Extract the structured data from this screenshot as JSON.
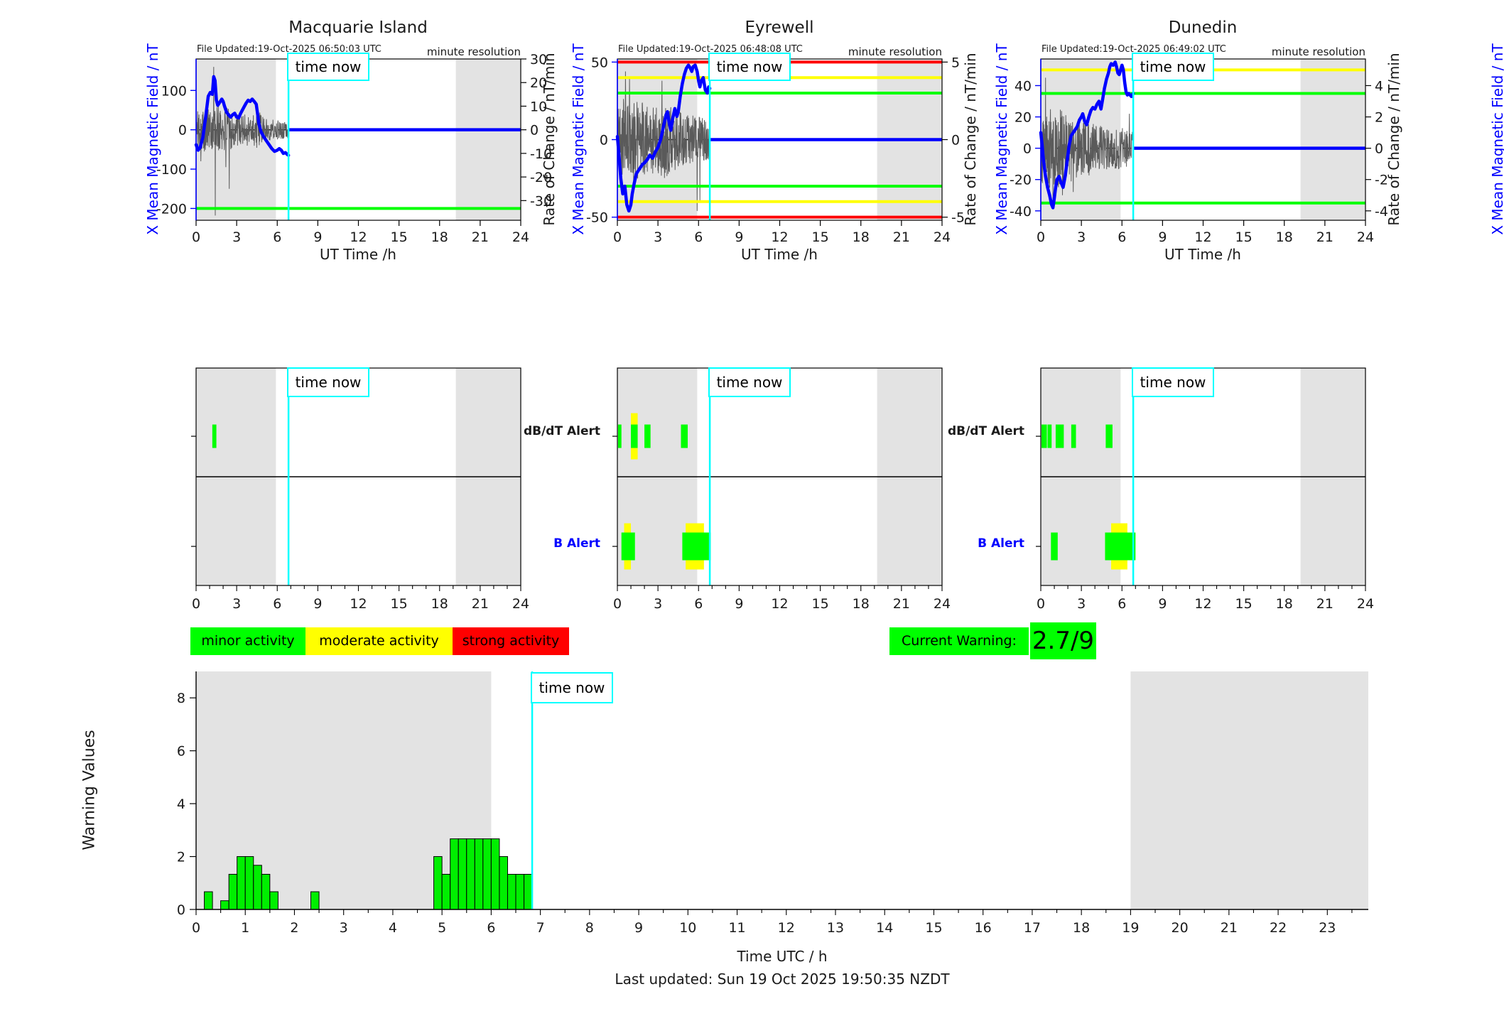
{
  "labels": {
    "time_now": "time now",
    "ut_time": "UT Time /h",
    "x_field_axis": "X Mean Magnetic Field / nT",
    "rate_axis": "Rate of Change / nT/min",
    "minute_resolution": "minute resolution",
    "db_dt_alert": "dB/dT Alert",
    "b_alert": "B Alert",
    "last_updated": "Last updated: Sun 19 Oct 2025 19:50:35 NZDT"
  },
  "legend": {
    "minor": "minor activity",
    "moderate": "moderate activity",
    "strong": "strong activity",
    "current_warning_label": "Current Warning:",
    "current_warning_value": "2.7/9"
  },
  "colors": {
    "minor": "#00ff00",
    "moderate": "#ffff00",
    "strong": "#ff0000",
    "trace": "#0000ff",
    "noise": "#5a5a5a",
    "time_now": "#00ffff",
    "shading": "#e3e3e3",
    "bar_fill": "#00ef00"
  },
  "chart_data": {
    "time_now_utc": 6.8333,
    "top_charts": [
      {
        "type": "line",
        "title": "Macquarie Island",
        "file_updated": "File Updated:19-Oct-2025 06:50:03 UTC",
        "xlabel": "UT Time /h",
        "ylabel_left": "X Mean Magnetic Field / nT",
        "ylabel_right": "Rate of Change / nT/min",
        "xlim": [
          0,
          24
        ],
        "xtick_step": 3,
        "ylim_left": [
          -230,
          180
        ],
        "yticks_left": [
          100,
          0,
          -100,
          -200
        ],
        "right_per_left": 0.16667,
        "yticks_right": [
          30,
          20,
          10,
          0,
          -10,
          -20,
          -30
        ],
        "shaded_hours": [
          [
            0,
            5.9
          ],
          [
            19.2,
            24
          ]
        ],
        "thresholds": [
          {
            "value": -200,
            "color": "#00ff00"
          }
        ],
        "field_series": {
          "x": [
            0,
            0.15,
            0.3,
            0.5,
            0.7,
            0.9,
            1.05,
            1.2,
            1.3,
            1.4,
            1.5,
            1.6,
            1.75,
            1.9,
            2.0,
            2.1,
            2.25,
            2.4,
            2.55,
            2.7,
            2.85,
            3.0,
            3.15,
            3.3,
            3.5,
            3.7,
            3.85,
            4.0,
            4.15,
            4.3,
            4.45,
            4.55,
            4.65,
            4.8,
            5.0,
            5.2,
            5.4,
            5.6,
            5.8,
            6.0,
            6.15,
            6.3,
            6.45,
            6.6,
            6.75,
            6.83
          ],
          "y": [
            -38,
            -52,
            -45,
            -20,
            30,
            85,
            95,
            90,
            135,
            125,
            75,
            62,
            70,
            78,
            72,
            60,
            45,
            38,
            32,
            38,
            42,
            32,
            30,
            42,
            55,
            68,
            75,
            72,
            78,
            72,
            65,
            40,
            15,
            -5,
            -18,
            -28,
            -38,
            -48,
            -55,
            -52,
            -48,
            -52,
            -60,
            -58,
            -63,
            -65
          ]
        },
        "noise_envelope": {
          "x": [
            0,
            1,
            1.5,
            2.5,
            3,
            4,
            4.6,
            5,
            5.5,
            6.83
          ],
          "amp": [
            55,
            65,
            70,
            60,
            45,
            45,
            55,
            35,
            30,
            25
          ]
        },
        "noise_spikes": [
          [
            0.35,
            -80
          ],
          [
            1.3,
            160
          ],
          [
            1.42,
            -218
          ],
          [
            2.2,
            -95
          ],
          [
            2.45,
            -150
          ]
        ],
        "future_value": 0
      },
      {
        "type": "line",
        "title": "Eyrewell",
        "file_updated": "File Updated:19-Oct-2025 06:48:08 UTC",
        "xlabel": "UT Time /h",
        "ylabel_left": "X Mean Magnetic Field / nT",
        "ylabel_right": "Rate of Change / nT/min",
        "xlim": [
          0,
          24
        ],
        "xtick_step": 3,
        "ylim_left": [
          -52,
          52
        ],
        "yticks_left": [
          50,
          0,
          -50
        ],
        "right_per_left": 0.1,
        "yticks_right": [
          5,
          0,
          -5
        ],
        "shaded_hours": [
          [
            0,
            5.9
          ],
          [
            19.2,
            24
          ]
        ],
        "thresholds": [
          {
            "value": 50,
            "color": "#ff0000"
          },
          {
            "value": -50,
            "color": "#ff0000"
          },
          {
            "value": 40,
            "color": "#ffff00"
          },
          {
            "value": -40,
            "color": "#ffff00"
          },
          {
            "value": 30,
            "color": "#00ff00"
          },
          {
            "value": -30,
            "color": "#00ff00"
          }
        ],
        "field_series": {
          "x": [
            0,
            0.1,
            0.25,
            0.4,
            0.55,
            0.7,
            0.85,
            1.0,
            1.1,
            1.25,
            1.4,
            1.55,
            1.7,
            1.85,
            2.0,
            2.2,
            2.4,
            2.6,
            2.8,
            3.0,
            3.2,
            3.4,
            3.6,
            3.7,
            3.8,
            3.95,
            4.1,
            4.25,
            4.4,
            4.5,
            4.65,
            4.8,
            4.95,
            5.1,
            5.25,
            5.4,
            5.5,
            5.6,
            5.75,
            5.9,
            6.0,
            6.1,
            6.2,
            6.35,
            6.5,
            6.65,
            6.75,
            6.83
          ],
          "y": [
            2,
            -8,
            -25,
            -35,
            -30,
            -42,
            -46,
            -42,
            -35,
            -28,
            -22,
            -20,
            -18,
            -16,
            -15,
            -13,
            -10,
            -12,
            -8,
            -5,
            0,
            8,
            16,
            18,
            12,
            6,
            14,
            20,
            15,
            18,
            28,
            36,
            42,
            46,
            48,
            46,
            44,
            47,
            48,
            44,
            38,
            34,
            38,
            40,
            32,
            30,
            34,
            33
          ]
        },
        "noise_envelope": {
          "x": [
            0,
            0.5,
            1,
            2,
            3,
            3.5,
            4.5,
            5.5,
            6.83
          ],
          "amp": [
            22,
            30,
            30,
            26,
            24,
            28,
            20,
            18,
            15
          ]
        },
        "noise_spikes": [
          [
            0.6,
            44
          ],
          [
            0.9,
            40
          ],
          [
            1.2,
            -34
          ],
          [
            3.3,
            38
          ],
          [
            5.9,
            -46
          ],
          [
            6.1,
            -40
          ]
        ],
        "future_value": 0
      },
      {
        "type": "line",
        "title": "Dunedin",
        "file_updated": "File Updated:19-Oct-2025 06:49:02 UTC",
        "xlabel": "UT Time /h",
        "ylabel_left": "X Mean Magnetic Field / nT",
        "ylabel_right": "Rate of Change / nT/min",
        "xlim": [
          0,
          24
        ],
        "xtick_step": 3,
        "ylim_left": [
          -46,
          57
        ],
        "yticks_left": [
          40,
          20,
          0,
          -20,
          -40
        ],
        "right_per_left": 0.1,
        "yticks_right": [
          4,
          2,
          0,
          -2,
          -4
        ],
        "shaded_hours": [
          [
            0,
            5.9
          ],
          [
            19.2,
            24
          ]
        ],
        "thresholds": [
          {
            "value": 50,
            "color": "#ffff00"
          },
          {
            "value": 35,
            "color": "#00ff00"
          },
          {
            "value": -35,
            "color": "#00ff00"
          }
        ],
        "field_series": {
          "x": [
            0,
            0.1,
            0.2,
            0.35,
            0.5,
            0.65,
            0.8,
            0.9,
            1.0,
            1.1,
            1.2,
            1.35,
            1.5,
            1.65,
            1.8,
            1.95,
            2.1,
            2.25,
            2.4,
            2.55,
            2.7,
            2.85,
            3.0,
            3.1,
            3.25,
            3.4,
            3.55,
            3.7,
            3.85,
            4.0,
            4.15,
            4.3,
            4.45,
            4.55,
            4.7,
            4.85,
            5.0,
            5.1,
            5.2,
            5.35,
            5.5,
            5.6,
            5.7,
            5.8,
            5.9,
            6.0,
            6.1,
            6.2,
            6.3,
            6.4,
            6.5,
            6.6,
            6.7,
            6.83
          ],
          "y": [
            10,
            2,
            -8,
            -18,
            -25,
            -30,
            -36,
            -38,
            -32,
            -25,
            -20,
            -18,
            -22,
            -25,
            -18,
            -8,
            2,
            8,
            10,
            12,
            14,
            18,
            20,
            22,
            17,
            15,
            20,
            24,
            26,
            25,
            28,
            30,
            25,
            30,
            38,
            44,
            48,
            52,
            54,
            53,
            55,
            52,
            48,
            47,
            50,
            53,
            50,
            42,
            36,
            34,
            35,
            34,
            33,
            35
          ]
        },
        "noise_envelope": {
          "x": [
            0,
            0.5,
            1.2,
            2,
            2.5,
            3.5,
            4.5,
            6.83
          ],
          "amp": [
            24,
            28,
            30,
            26,
            22,
            20,
            16,
            14
          ]
        },
        "noise_spikes": [
          [
            0.35,
            45
          ],
          [
            0.9,
            -36
          ],
          [
            1.6,
            -30
          ],
          [
            2.4,
            -28
          ],
          [
            6.55,
            22
          ]
        ],
        "future_value": 0
      }
    ],
    "alert_panels": [
      {
        "station": "Macquarie Island",
        "shaded_hours": [
          [
            0,
            5.9
          ],
          [
            19.2,
            24
          ]
        ],
        "dbdt_moderate": [],
        "dbdt_minor": [
          [
            1.2,
            1.5
          ]
        ],
        "b_moderate": [],
        "b_minor": []
      },
      {
        "station": "Eyrewell",
        "shaded_hours": [
          [
            0,
            5.9
          ],
          [
            19.2,
            24
          ]
        ],
        "dbdt_moderate": [
          [
            1.0,
            1.5
          ]
        ],
        "dbdt_minor": [
          [
            0.05,
            0.3
          ],
          [
            1.0,
            1.5
          ],
          [
            2.0,
            2.45
          ],
          [
            4.7,
            5.2
          ]
        ],
        "b_moderate": [
          [
            0.5,
            1.0
          ],
          [
            5.05,
            6.4
          ]
        ],
        "b_minor": [
          [
            0.3,
            1.3
          ],
          [
            4.8,
            6.9
          ]
        ]
      },
      {
        "station": "Dunedin",
        "shaded_hours": [
          [
            0,
            5.9
          ],
          [
            19.2,
            24
          ]
        ],
        "dbdt_moderate": [],
        "dbdt_minor": [
          [
            0.05,
            0.45
          ],
          [
            0.5,
            0.8
          ],
          [
            1.1,
            1.7
          ],
          [
            2.25,
            2.6
          ],
          [
            4.8,
            5.3
          ]
        ],
        "b_moderate": [
          [
            5.2,
            6.4
          ]
        ],
        "b_minor": [
          [
            0.75,
            1.25
          ],
          [
            4.75,
            7.0
          ]
        ]
      }
    ],
    "warning_chart": {
      "type": "bar",
      "ylabel": "Warning Values",
      "xlabel": "Time UTC / h",
      "ylim": [
        0,
        9
      ],
      "yticks": [
        0,
        2,
        4,
        6,
        8
      ],
      "xlim": [
        0,
        23.8333
      ],
      "xtick_step": 1,
      "bin_hours": 0.16667,
      "shaded_hours": [
        [
          0,
          6
        ],
        [
          19,
          23.8333
        ]
      ],
      "bars": [
        {
          "t": 0.167,
          "v": 0.67
        },
        {
          "t": 0.5,
          "v": 0.33
        },
        {
          "t": 0.667,
          "v": 1.33
        },
        {
          "t": 0.833,
          "v": 2.0
        },
        {
          "t": 1.0,
          "v": 2.0
        },
        {
          "t": 1.167,
          "v": 1.67
        },
        {
          "t": 1.333,
          "v": 1.33
        },
        {
          "t": 1.5,
          "v": 0.67
        },
        {
          "t": 2.333,
          "v": 0.67
        },
        {
          "t": 4.833,
          "v": 2.0
        },
        {
          "t": 5.0,
          "v": 1.33
        },
        {
          "t": 5.167,
          "v": 2.67
        },
        {
          "t": 5.333,
          "v": 2.67
        },
        {
          "t": 5.5,
          "v": 2.67
        },
        {
          "t": 5.667,
          "v": 2.67
        },
        {
          "t": 5.833,
          "v": 2.67
        },
        {
          "t": 6.0,
          "v": 2.67
        },
        {
          "t": 6.167,
          "v": 2.0
        },
        {
          "t": 6.333,
          "v": 1.33
        },
        {
          "t": 6.5,
          "v": 1.33
        },
        {
          "t": 6.667,
          "v": 1.33
        }
      ]
    }
  }
}
